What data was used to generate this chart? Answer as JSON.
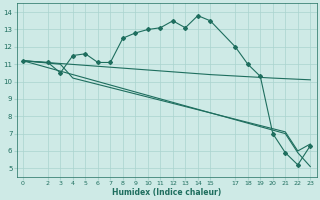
{
  "xlabel": "Humidex (Indice chaleur)",
  "ylabel": "",
  "bg_color": "#ceeae6",
  "grid_color": "#aad4ce",
  "line_color": "#1e6e5e",
  "xlim": [
    -0.5,
    23.5
  ],
  "ylim": [
    4.5,
    14.5
  ],
  "xticks": [
    0,
    2,
    3,
    4,
    5,
    6,
    7,
    8,
    9,
    10,
    11,
    12,
    13,
    14,
    15,
    17,
    18,
    19,
    20,
    21,
    22,
    23
  ],
  "yticks": [
    5,
    6,
    7,
    8,
    9,
    10,
    11,
    12,
    13,
    14
  ],
  "lines": [
    {
      "x": [
        0,
        2,
        3,
        4,
        5,
        6,
        7,
        8,
        9,
        10,
        11,
        12,
        13,
        14,
        15,
        17,
        18,
        19,
        20,
        21,
        22,
        23
      ],
      "y": [
        11.2,
        11.1,
        10.5,
        11.5,
        11.6,
        11.1,
        11.1,
        12.5,
        12.8,
        13.0,
        13.1,
        13.5,
        13.1,
        13.8,
        13.5,
        12.0,
        11.0,
        10.3,
        7.0,
        5.9,
        5.2,
        6.3
      ],
      "marker": "D",
      "markersize": 2.0,
      "lw": 0.8
    },
    {
      "x": [
        0,
        3,
        4,
        21,
        22,
        23
      ],
      "y": [
        11.2,
        11.0,
        10.2,
        7.1,
        6.0,
        6.4
      ],
      "marker": null,
      "markersize": 0,
      "lw": 0.8
    },
    {
      "x": [
        0,
        21,
        22,
        23
      ],
      "y": [
        11.2,
        7.0,
        5.9,
        5.1
      ],
      "marker": null,
      "markersize": 0,
      "lw": 0.8
    },
    {
      "x": [
        0,
        15,
        20,
        23
      ],
      "y": [
        11.2,
        10.4,
        10.2,
        10.1
      ],
      "marker": null,
      "markersize": 0,
      "lw": 0.8
    }
  ]
}
